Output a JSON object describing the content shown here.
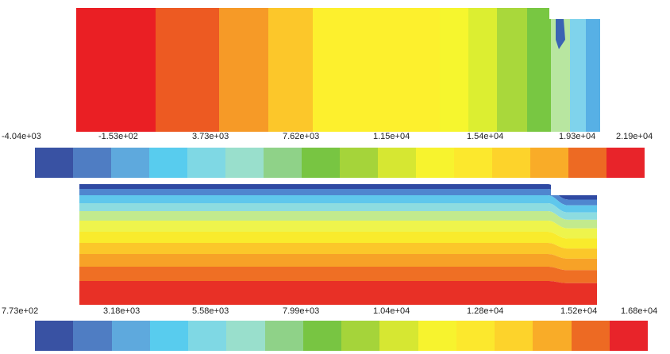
{
  "top_contour": {
    "stripe_colors": [
      "#ea1f24",
      "#ed5a22",
      "#f69a27",
      "#fcc72a",
      "#fdf02d",
      "#f6f62e",
      "#dcee31",
      "#a9d83b",
      "#78c742",
      "#b8e6a0",
      "#7fd3ec",
      "#57b0e5",
      "#3a64b3"
    ]
  },
  "colorbar_top": {
    "tick_labels": [
      "-4.04e+03",
      "-1.53e+02",
      "3.73e+03",
      "7.62e+03",
      "1.15e+04",
      "1.54e+04",
      "1.93e+04",
      "2.19e+04"
    ],
    "colors": [
      "#3952a3",
      "#4f7dc3",
      "#5ea9dd",
      "#58ccee",
      "#7fd8e4",
      "#99dfcc",
      "#8fd288",
      "#78c542",
      "#a5d43a",
      "#d6e732",
      "#f7f32e",
      "#fce82d",
      "#fdd32b",
      "#f9ac28",
      "#ed6a23",
      "#e8242a"
    ]
  },
  "bottom_contour": {
    "band_colors": [
      "#2f4aa3",
      "#4f86cf",
      "#5fc7ec",
      "#8ddce0",
      "#c2ea8d",
      "#eef44c",
      "#f9eb2c",
      "#fbc72a",
      "#f7a227",
      "#ef6f24",
      "#e83026"
    ]
  },
  "colorbar_bottom": {
    "tick_labels": [
      "7.73e+02",
      "3.18e+03",
      "5.58e+03",
      "7.99e+03",
      "1.04e+04",
      "1.28e+04",
      "1.52e+04",
      "1.68e+04"
    ],
    "colors": [
      "#3952a3",
      "#4f7dc3",
      "#5ea9dd",
      "#58ccee",
      "#7fd8e4",
      "#99dfcc",
      "#8fd288",
      "#78c542",
      "#a5d43a",
      "#d6e732",
      "#f7f32e",
      "#fce82d",
      "#fdd32b",
      "#f9ac28",
      "#ed6a23",
      "#e8242a"
    ]
  }
}
